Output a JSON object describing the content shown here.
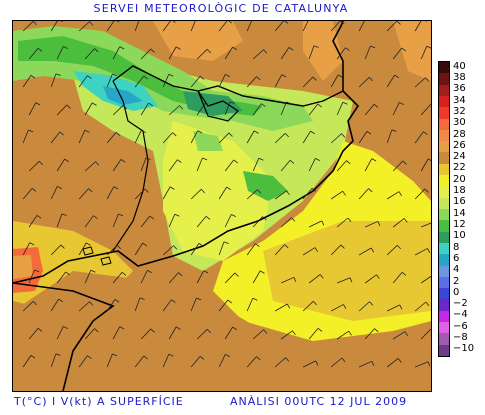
{
  "header": {
    "title": "SERVEI METEOROLÒGIC DE CATALUNYA"
  },
  "footer": {
    "left": "T(°C) I V(kt) A SUPERFÍCIE",
    "right": "ANÀLISI 00UTC 12 JUL 2009"
  },
  "legend": {
    "items": [
      {
        "value": "40",
        "color": "#3a0a0a"
      },
      {
        "value": "38",
        "color": "#6e1414"
      },
      {
        "value": "36",
        "color": "#a01e1e"
      },
      {
        "value": "34",
        "color": "#d92020"
      },
      {
        "value": "32",
        "color": "#f03a28"
      },
      {
        "value": "30",
        "color": "#f46a3a"
      },
      {
        "value": "28",
        "color": "#f08a4a"
      },
      {
        "value": "26",
        "color": "#e8a046"
      },
      {
        "value": "24",
        "color": "#c98a3e"
      },
      {
        "value": "22",
        "color": "#e8c832"
      },
      {
        "value": "20",
        "color": "#f4f028"
      },
      {
        "value": "18",
        "color": "#e6f04a"
      },
      {
        "value": "16",
        "color": "#c4e85a"
      },
      {
        "value": "14",
        "color": "#8cd85a"
      },
      {
        "value": "12",
        "color": "#4cbe3e"
      },
      {
        "value": "10",
        "color": "#2e9c5e"
      },
      {
        "value": "8",
        "color": "#3ed2c2"
      },
      {
        "value": "6",
        "color": "#28a6c8"
      },
      {
        "value": "4",
        "color": "#6e96e0"
      },
      {
        "value": "2",
        "color": "#5a6ee6"
      },
      {
        "value": "0",
        "color": "#3a46d8"
      },
      {
        "value": "−2",
        "color": "#6a28c8"
      },
      {
        "value": "−4",
        "color": "#c828e6"
      },
      {
        "value": "−6",
        "color": "#e060e6"
      },
      {
        "value": "−8",
        "color": "#a05ab4"
      },
      {
        "value": "−10",
        "color": "#6e3a8c"
      }
    ]
  }
}
